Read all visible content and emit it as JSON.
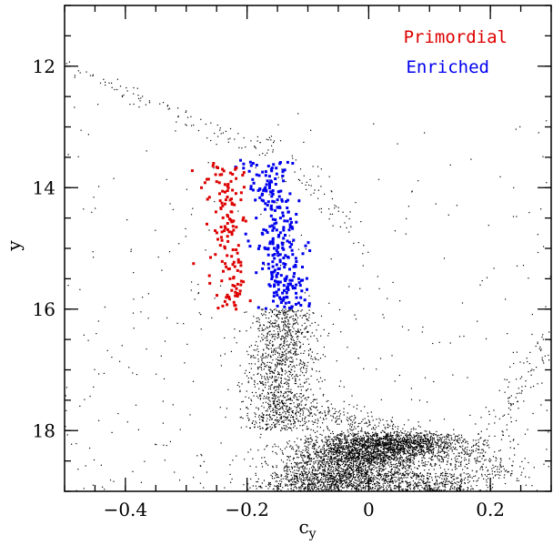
{
  "chart_data": {
    "type": "scatter",
    "xlabel": "c",
    "xlabel_subscript": "y",
    "ylabel": "y",
    "xlim": [
      -0.5,
      0.3
    ],
    "ylim": [
      19.0,
      11.0
    ],
    "y_inverted": true,
    "grid": false,
    "legend_placement": "top-right",
    "x_major_ticks": [
      -0.4,
      -0.2,
      0,
      0.2
    ],
    "x_tick_labels": [
      "−0.4",
      "−0.2",
      "0",
      "0.2"
    ],
    "x_minor_step": 0.05,
    "y_major_ticks": [
      12,
      14,
      16,
      18
    ],
    "y_tick_labels": [
      "12",
      "14",
      "16",
      "18"
    ],
    "y_minor_step": 0.5,
    "series": [
      {
        "name": "Primordial",
        "color": "#dd0000",
        "x_range": [
          -0.29,
          -0.2
        ],
        "y_range": [
          13.6,
          16.0
        ],
        "points": [
          [
            -0.29,
            13.72
          ],
          [
            -0.275,
            14.0
          ],
          [
            -0.255,
            13.6
          ],
          [
            -0.25,
            13.9
          ],
          [
            -0.245,
            14.1
          ],
          [
            -0.24,
            14.3
          ],
          [
            -0.232,
            14.05
          ],
          [
            -0.225,
            14.4
          ],
          [
            -0.222,
            14.7
          ],
          [
            -0.218,
            13.85
          ],
          [
            -0.214,
            14.95
          ],
          [
            -0.21,
            14.2
          ],
          [
            -0.205,
            13.75
          ],
          [
            -0.202,
            14.55
          ],
          [
            -0.248,
            14.85
          ],
          [
            -0.252,
            15.1
          ],
          [
            -0.236,
            15.25
          ],
          [
            -0.228,
            15.5
          ],
          [
            -0.22,
            15.3
          ],
          [
            -0.212,
            15.75
          ],
          [
            -0.206,
            15.55
          ],
          [
            -0.23,
            15.8
          ],
          [
            -0.24,
            15.95
          ],
          [
            -0.218,
            16.0
          ],
          [
            -0.262,
            15.45
          ],
          [
            -0.288,
            15.25
          ],
          [
            -0.266,
            14.6
          ],
          [
            -0.232,
            14.8
          ]
        ],
        "approx_count": 120
      },
      {
        "name": "Enriched",
        "color": "#0000ee",
        "x_range": [
          -0.195,
          -0.095
        ],
        "y_range": [
          13.55,
          16.0
        ],
        "points": [
          [
            -0.19,
            13.6
          ],
          [
            -0.18,
            13.8
          ],
          [
            -0.17,
            14.0
          ],
          [
            -0.16,
            13.7
          ],
          [
            -0.15,
            14.2
          ],
          [
            -0.145,
            14.5
          ],
          [
            -0.14,
            14.7
          ],
          [
            -0.13,
            14.9
          ],
          [
            -0.125,
            15.1
          ],
          [
            -0.12,
            15.3
          ],
          [
            -0.115,
            15.5
          ],
          [
            -0.11,
            15.7
          ],
          [
            -0.105,
            15.85
          ],
          [
            -0.098,
            15.95
          ],
          [
            -0.175,
            14.75
          ],
          [
            -0.165,
            15.0
          ],
          [
            -0.185,
            15.4
          ],
          [
            -0.155,
            15.6
          ],
          [
            -0.135,
            15.8
          ],
          [
            -0.125,
            13.6
          ],
          [
            -0.185,
            14.5
          ],
          [
            -0.16,
            14.3
          ],
          [
            -0.14,
            15.25
          ],
          [
            -0.15,
            15.95
          ]
        ],
        "approx_count": 260
      },
      {
        "name": "",
        "color": "#000000",
        "description_features": {
          "main_sequence_turnoff_center": [
            0.0,
            18.45
          ],
          "subgiant_branch": {
            "from": [
              -0.17,
              17.5
            ],
            "to": [
              0.25,
              18.7
            ]
          },
          "lower_rgb": {
            "from": [
              -0.16,
              16.3
            ],
            "to": [
              -0.12,
              17.6
            ]
          },
          "agb_upper_sequence": {
            "from": [
              -0.5,
              12.0
            ],
            "to": [
              -0.17,
              13.4
            ]
          },
          "field_scatter_region": {
            "x": [
              -0.5,
              0.3
            ],
            "y": [
              11.5,
              19.0
            ]
          }
        },
        "approx_count": 6000
      }
    ]
  }
}
